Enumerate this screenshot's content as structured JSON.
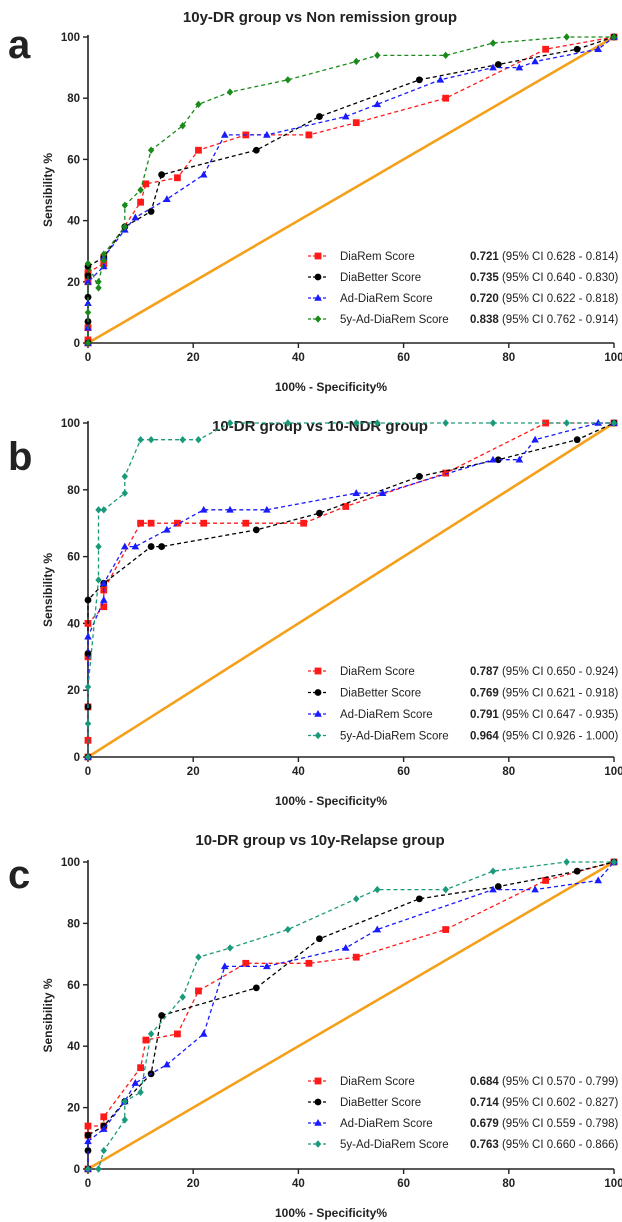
{
  "chart_data": [
    {
      "type": "line",
      "panel_label": "a",
      "title": "10y-DR group vs Non remission group",
      "xlabel": "100% - Specificity%",
      "ylabel": "Sensibility %",
      "xlim": [
        0,
        100
      ],
      "ylim": [
        0,
        100
      ],
      "x_ticks": [
        "0",
        "20",
        "40",
        "60",
        "80",
        "100"
      ],
      "y_ticks": [
        "0",
        "20",
        "40",
        "60",
        "80",
        "100"
      ],
      "grid": false,
      "legend_position": "bottom-right",
      "reference_line": {
        "x": [
          0,
          100
        ],
        "y": [
          0,
          100
        ],
        "color": "#f5a01a"
      },
      "series": [
        {
          "name": "DiaRem Score",
          "color": "#ff1a1a",
          "marker": "square",
          "auc": "0.721",
          "ci": "(95% CI 0.628 - 0.814)",
          "x": [
            0,
            0,
            0,
            0,
            0,
            0,
            3,
            3,
            10,
            11,
            17,
            21,
            30,
            42,
            51,
            68,
            87,
            100
          ],
          "y": [
            0,
            1,
            5,
            20,
            22,
            23,
            26,
            28,
            46,
            52,
            54,
            63,
            68,
            68,
            72,
            80,
            96,
            100
          ]
        },
        {
          "name": "DiaBetter Score",
          "color": "#000000",
          "marker": "circle",
          "auc": "0.735",
          "ci": "(95% CI 0.640 - 0.830)",
          "x": [
            0,
            0,
            0,
            0,
            0,
            3,
            7,
            12,
            14,
            32,
            44,
            63,
            78,
            93,
            100
          ],
          "y": [
            0,
            7,
            15,
            22,
            25,
            28,
            38,
            43,
            55,
            63,
            74,
            86,
            91,
            96,
            100
          ]
        },
        {
          "name": "Ad-DiaRem Score",
          "color": "#1a1aff",
          "marker": "triangle",
          "auc": "0.720",
          "ci": "(95% CI 0.622 - 0.818)",
          "x": [
            0,
            0,
            0,
            0,
            3,
            3,
            7,
            9,
            15,
            22,
            26,
            34,
            49,
            55,
            67,
            77,
            82,
            85,
            97,
            100
          ],
          "y": [
            0,
            5,
            13,
            20,
            25,
            28,
            37,
            41,
            47,
            55,
            68,
            68,
            74,
            78,
            86,
            90,
            90,
            92,
            96,
            100
          ]
        },
        {
          "name": "5y-Ad-DiaRem Score",
          "color": "#1a8a1a",
          "marker": "diamond",
          "auc": "0.838",
          "ci": "(95% CI 0.762 - 0.914)",
          "x": [
            0,
            0,
            0,
            2,
            2,
            3,
            3,
            7,
            7,
            10,
            12,
            18,
            21,
            27,
            38,
            51,
            55,
            68,
            77,
            91,
            100
          ],
          "y": [
            0,
            10,
            26,
            18,
            20,
            27,
            29,
            38,
            45,
            50,
            63,
            71,
            78,
            82,
            86,
            92,
            94,
            94,
            98,
            100,
            100
          ]
        }
      ]
    },
    {
      "type": "line",
      "panel_label": "b",
      "title": "10-DR group vs 10-NDR group",
      "xlabel": "100% - Specificity%",
      "ylabel": "Sensibility %",
      "xlim": [
        0,
        100
      ],
      "ylim": [
        0,
        100
      ],
      "x_ticks": [
        "0",
        "20",
        "40",
        "60",
        "80",
        "100"
      ],
      "y_ticks": [
        "0",
        "20",
        "40",
        "60",
        "80",
        "100"
      ],
      "grid": false,
      "legend_position": "bottom-right",
      "reference_line": {
        "x": [
          0,
          100
        ],
        "y": [
          0,
          100
        ],
        "color": "#f5a01a"
      },
      "series": [
        {
          "name": "DiaRem Score",
          "color": "#ff1a1a",
          "marker": "square",
          "auc": "0.787",
          "ci": "(95% CI 0.650 - 0.924)",
          "x": [
            0,
            0,
            0,
            0,
            0,
            3,
            3,
            10,
            12,
            17,
            22,
            30,
            41,
            49,
            68,
            87,
            100
          ],
          "y": [
            0,
            5,
            15,
            30,
            40,
            45,
            50,
            70,
            70,
            70,
            70,
            70,
            70,
            75,
            85,
            100,
            100
          ]
        },
        {
          "name": "DiaBetter Score",
          "color": "#000000",
          "marker": "circle",
          "auc": "0.769",
          "ci": "(95% CI 0.621 - 0.918)",
          "x": [
            0,
            0,
            0,
            0,
            3,
            12,
            14,
            32,
            44,
            63,
            78,
            93,
            100
          ],
          "y": [
            0,
            15,
            31,
            47,
            52,
            63,
            63,
            68,
            73,
            84,
            89,
            95,
            100
          ]
        },
        {
          "name": "Ad-DiaRem Score",
          "color": "#1a1aff",
          "marker": "triangle",
          "auc": "0.791",
          "ci": "(95% CI 0.647 - 0.935)",
          "x": [
            0,
            0,
            3,
            3,
            7,
            9,
            15,
            22,
            27,
            34,
            51,
            56,
            77,
            82,
            85,
            97,
            100
          ],
          "y": [
            0,
            36,
            47,
            52,
            63,
            63,
            68,
            74,
            74,
            74,
            79,
            79,
            89,
            89,
            95,
            100,
            100
          ]
        },
        {
          "name": "5y-Ad-DiaRem Score",
          "color": "#1a9a7a",
          "marker": "diamond",
          "auc": "0.964",
          "ci": "(95% CI 0.926 - 1.000)",
          "x": [
            0,
            0,
            0,
            2,
            2,
            2,
            3,
            7,
            7,
            10,
            12,
            18,
            21,
            27,
            38,
            51,
            55,
            68,
            77,
            91,
            100
          ],
          "y": [
            0,
            10,
            21,
            53,
            63,
            74,
            74,
            79,
            84,
            95,
            95,
            95,
            95,
            100,
            100,
            100,
            100,
            100,
            100,
            100,
            100
          ]
        }
      ]
    },
    {
      "type": "line",
      "panel_label": "c",
      "title": "10-DR group vs 10y-Relapse group",
      "xlabel": "100% - Specificity%",
      "ylabel": "Sensibility %",
      "xlim": [
        0,
        100
      ],
      "ylim": [
        0,
        100
      ],
      "x_ticks": [
        "0",
        "20",
        "40",
        "60",
        "80",
        "100"
      ],
      "y_ticks": [
        "0",
        "20",
        "40",
        "60",
        "80",
        "100"
      ],
      "grid": false,
      "legend_position": "bottom-right",
      "reference_line": {
        "x": [
          0,
          100
        ],
        "y": [
          0,
          100
        ],
        "color": "#f5a01a"
      },
      "series": [
        {
          "name": "DiaRem Score",
          "color": "#ff1a1a",
          "marker": "square",
          "auc": "0.684",
          "ci": "(95% CI 0.570 - 0.799)",
          "x": [
            0,
            0,
            0,
            3,
            3,
            10,
            11,
            17,
            21,
            30,
            42,
            51,
            68,
            87,
            100
          ],
          "y": [
            0,
            11,
            14,
            14,
            17,
            33,
            42,
            44,
            58,
            67,
            67,
            69,
            78,
            94,
            100
          ]
        },
        {
          "name": "DiaBetter Score",
          "color": "#000000",
          "marker": "circle",
          "auc": "0.714",
          "ci": "(95% CI 0.602 - 0.827)",
          "x": [
            0,
            0,
            0,
            3,
            7,
            12,
            14,
            32,
            44,
            63,
            78,
            93,
            100
          ],
          "y": [
            0,
            6,
            11,
            14,
            22,
            31,
            50,
            59,
            75,
            88,
            92,
            97,
            100
          ]
        },
        {
          "name": "Ad-DiaRem Score",
          "color": "#1a1aff",
          "marker": "triangle",
          "auc": "0.679",
          "ci": "(95% CI 0.559 - 0.798)",
          "x": [
            0,
            0,
            3,
            7,
            9,
            15,
            22,
            26,
            34,
            49,
            55,
            77,
            85,
            97,
            100
          ],
          "y": [
            0,
            9,
            13,
            22,
            28,
            34,
            44,
            66,
            66,
            72,
            78,
            91,
            91,
            94,
            100
          ]
        },
        {
          "name": "5y-Ad-DiaRem Score",
          "color": "#1a9a7a",
          "marker": "diamond",
          "auc": "0.763",
          "ci": "(95% CI 0.660 - 0.866)",
          "x": [
            0,
            2,
            3,
            7,
            7,
            10,
            12,
            18,
            21,
            27,
            38,
            51,
            55,
            68,
            77,
            91,
            100
          ],
          "y": [
            0,
            0,
            6,
            16,
            22,
            25,
            44,
            56,
            69,
            72,
            78,
            88,
            91,
            91,
            97,
            100,
            100
          ]
        }
      ]
    }
  ]
}
